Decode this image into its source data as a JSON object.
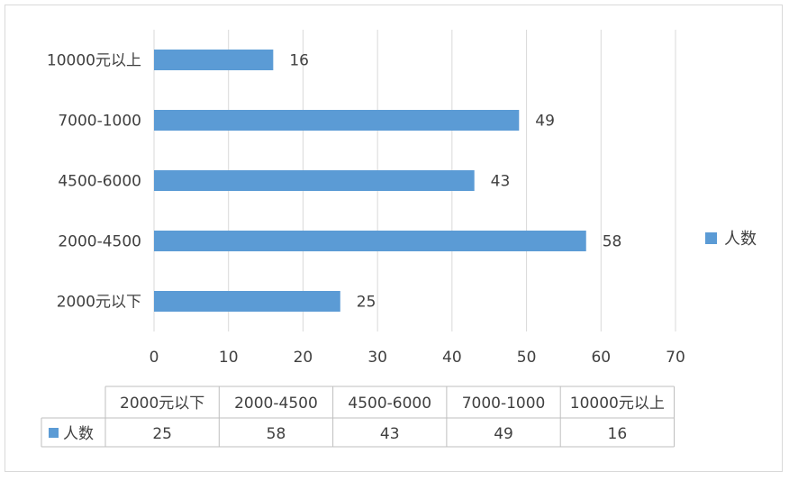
{
  "chart_data": {
    "type": "bar",
    "orientation": "horizontal",
    "categories": [
      "2000元以下",
      "2000-4500",
      "4500-6000",
      "7000-1000",
      "10000元以上"
    ],
    "series": [
      {
        "name": "人数",
        "values": [
          25,
          58,
          43,
          49,
          16
        ],
        "color": "#5b9bd5"
      }
    ],
    "xlim": [
      0,
      70
    ],
    "x_ticks": [
      0,
      10,
      20,
      30,
      40,
      50,
      60,
      70
    ],
    "grid": "vertical",
    "legend_position": "right",
    "data_table": true,
    "title": "",
    "xlabel": "",
    "ylabel": ""
  }
}
